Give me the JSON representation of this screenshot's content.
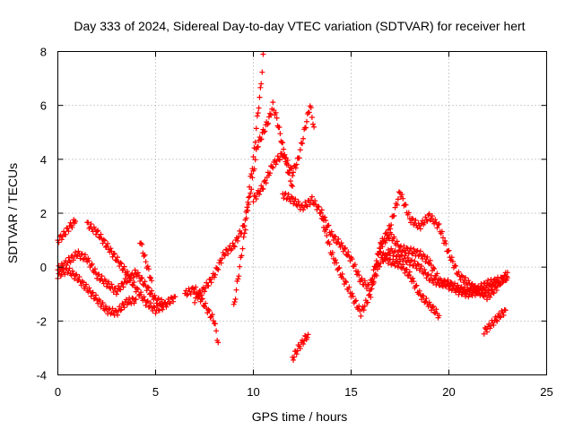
{
  "chart_data": {
    "type": "scatter",
    "title": "Day 333 of 2024, Sidereal Day-to-day VTEC variation (SDTVAR) for receiver hert",
    "xlabel": "GPS time / hours",
    "ylabel": "SDTVAR / TECUs",
    "xlim": [
      0,
      25
    ],
    "ylim": [
      -4,
      8
    ],
    "xticks": [
      "0",
      "5",
      "10",
      "15",
      "20",
      "25"
    ],
    "yticks": [
      "-4",
      "-2",
      "0",
      "2",
      "4",
      "6",
      "8"
    ],
    "grid": true,
    "marker": "plus",
    "colors": {
      "series": "#ff0000",
      "grid": "#a0a0a0",
      "axis": "#000000"
    },
    "series": [
      {
        "name": "satellite traces",
        "tracks": [
          [
            [
              0.0,
              -0.1
            ],
            [
              0.5,
              0.2
            ],
            [
              1.0,
              0.5
            ],
            [
              1.5,
              0.3
            ],
            [
              2.0,
              -0.3
            ],
            [
              2.5,
              -0.6
            ],
            [
              3.0,
              -0.9
            ],
            [
              3.5,
              -0.5
            ],
            [
              4.0,
              -0.2
            ],
            [
              4.5,
              -0.7
            ],
            [
              5.0,
              -1.2
            ],
            [
              5.5,
              -1.4
            ],
            [
              6.0,
              -1.1
            ]
          ],
          [
            [
              0.0,
              -0.3
            ],
            [
              0.5,
              -0.1
            ],
            [
              1.0,
              -0.4
            ],
            [
              1.5,
              -0.8
            ],
            [
              2.0,
              -1.2
            ],
            [
              2.5,
              -1.6
            ],
            [
              3.0,
              -1.7
            ],
            [
              3.5,
              -1.3
            ],
            [
              4.0,
              -1.2
            ]
          ],
          [
            [
              0.0,
              1.0
            ],
            [
              0.3,
              1.2
            ],
            [
              0.6,
              1.5
            ],
            [
              0.9,
              1.7
            ]
          ],
          [
            [
              1.5,
              1.6
            ],
            [
              2.0,
              1.3
            ],
            [
              2.5,
              0.8
            ],
            [
              3.0,
              0.3
            ],
            [
              3.5,
              -0.2
            ],
            [
              4.0,
              -0.8
            ],
            [
              4.5,
              -1.3
            ],
            [
              5.0,
              -1.6
            ],
            [
              5.5,
              -1.4
            ]
          ],
          [
            [
              4.2,
              1.0
            ],
            [
              4.5,
              0.2
            ],
            [
              4.8,
              -0.5
            ]
          ],
          [
            [
              6.5,
              -1.0
            ],
            [
              7.0,
              -0.8
            ],
            [
              7.5,
              -1.4
            ],
            [
              8.0,
              -2.0
            ],
            [
              8.2,
              -2.8
            ]
          ],
          [
            [
              7.0,
              -1.2
            ],
            [
              7.5,
              -0.8
            ],
            [
              8.0,
              -0.3
            ],
            [
              8.5,
              0.5
            ],
            [
              9.0,
              0.8
            ],
            [
              9.5,
              1.5
            ],
            [
              9.8,
              2.5
            ],
            [
              10.0,
              3.5
            ],
            [
              10.2,
              4.5
            ],
            [
              10.5,
              5.0
            ],
            [
              10.8,
              5.5
            ],
            [
              11.0,
              6.0
            ],
            [
              11.2,
              5.5
            ],
            [
              11.5,
              4.5
            ],
            [
              11.8,
              3.5
            ],
            [
              12.0,
              3.0
            ]
          ],
          [
            [
              9.0,
              -1.5
            ],
            [
              9.3,
              0.0
            ],
            [
              9.6,
              1.5
            ],
            [
              9.8,
              3.0
            ],
            [
              10.0,
              4.0
            ],
            [
              10.2,
              5.5
            ],
            [
              10.4,
              6.8
            ],
            [
              10.5,
              7.9
            ]
          ],
          [
            [
              10.0,
              2.5
            ],
            [
              10.5,
              3.0
            ],
            [
              11.0,
              3.8
            ],
            [
              11.5,
              4.2
            ],
            [
              12.0,
              3.5
            ],
            [
              12.3,
              4.0
            ],
            [
              12.6,
              5.0
            ],
            [
              12.9,
              6.0
            ],
            [
              13.1,
              5.2
            ]
          ],
          [
            [
              11.5,
              2.7
            ],
            [
              12.0,
              2.5
            ],
            [
              12.5,
              2.2
            ],
            [
              13.0,
              2.5
            ],
            [
              13.5,
              2.0
            ],
            [
              14.0,
              1.2
            ],
            [
              14.5,
              0.8
            ],
            [
              15.0,
              0.3
            ],
            [
              15.5,
              -0.5
            ],
            [
              16.0,
              -0.8
            ],
            [
              16.5,
              0.2
            ],
            [
              17.0,
              0.6
            ],
            [
              17.5,
              0.4
            ],
            [
              18.0,
              0.2
            ],
            [
              18.5,
              0.0
            ],
            [
              19.0,
              -0.4
            ],
            [
              19.5,
              -0.6
            ],
            [
              20.0,
              -0.6
            ],
            [
              20.5,
              -0.8
            ],
            [
              21.0,
              -0.9
            ],
            [
              21.5,
              -0.8
            ],
            [
              22.0,
              -0.6
            ],
            [
              22.5,
              -0.5
            ],
            [
              23.0,
              -0.4
            ]
          ],
          [
            [
              13.5,
              1.8
            ],
            [
              14.0,
              0.5
            ],
            [
              14.5,
              -0.3
            ],
            [
              15.0,
              -1.0
            ],
            [
              15.5,
              -1.7
            ],
            [
              16.0,
              -1.0
            ],
            [
              16.5,
              0.8
            ],
            [
              17.0,
              1.5
            ],
            [
              17.5,
              2.8
            ],
            [
              18.0,
              1.8
            ],
            [
              18.5,
              1.5
            ],
            [
              19.0,
              1.9
            ],
            [
              19.5,
              1.5
            ],
            [
              20.0,
              0.5
            ],
            [
              20.5,
              -0.3
            ],
            [
              21.0,
              -0.6
            ],
            [
              21.5,
              -0.9
            ],
            [
              22.0,
              -1.1
            ],
            [
              22.5,
              -0.7
            ],
            [
              23.0,
              -0.2
            ]
          ],
          [
            [
              16.5,
              0.5
            ],
            [
              17.0,
              0.2
            ],
            [
              17.5,
              0.1
            ],
            [
              18.0,
              -0.3
            ],
            [
              18.5,
              -1.0
            ],
            [
              19.0,
              -1.4
            ],
            [
              19.5,
              -1.8
            ]
          ],
          [
            [
              16.0,
              -0.6
            ],
            [
              16.5,
              0.8
            ],
            [
              17.0,
              1.2
            ],
            [
              17.5,
              0.7
            ],
            [
              18.0,
              0.6
            ],
            [
              18.5,
              0.5
            ],
            [
              19.0,
              0.2
            ],
            [
              19.5,
              -0.5
            ],
            [
              20.0,
              -0.7
            ],
            [
              20.5,
              -0.9
            ],
            [
              21.0,
              -1.0
            ],
            [
              21.5,
              -0.9
            ],
            [
              22.0,
              -0.8
            ],
            [
              22.5,
              -0.6
            ]
          ],
          [
            [
              12.0,
              -3.4
            ],
            [
              12.3,
              -3.0
            ],
            [
              12.6,
              -2.7
            ],
            [
              12.8,
              -2.5
            ]
          ],
          [
            [
              21.8,
              -2.4
            ],
            [
              22.2,
              -2.1
            ],
            [
              22.6,
              -1.8
            ],
            [
              22.9,
              -1.6
            ]
          ]
        ]
      }
    ]
  }
}
